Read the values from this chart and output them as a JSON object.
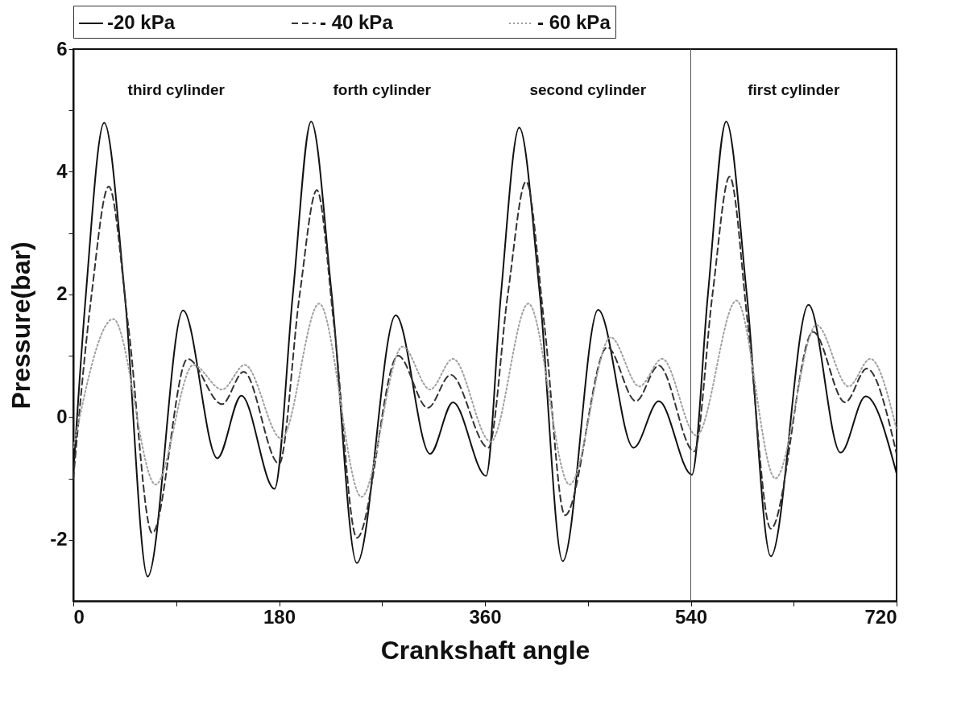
{
  "chart_data": {
    "type": "line",
    "xlabel": "Crankshaft angle",
    "ylabel": "Pressure(bar)",
    "xlim": [
      0,
      720
    ],
    "xticks": [
      0,
      {
        "value": 90,
        "label": null
      },
      180,
      {
        "value": 270,
        "label": null
      },
      360,
      {
        "value": 450,
        "label": null
      },
      540,
      {
        "value": 630,
        "label": null
      },
      720
    ],
    "ylim": [
      -3,
      6
    ],
    "yticks": [
      {
        "value": -1,
        "label": null
      },
      -2,
      0,
      {
        "value": 1,
        "label": null
      },
      2,
      {
        "value": 3,
        "label": null
      },
      4,
      {
        "value": 5,
        "label": null
      },
      6
    ],
    "grid": false,
    "legend": "top",
    "marker": "none",
    "annotations": [
      "third cylinder",
      "forth cylinder",
      "second cylinder",
      "first cylinder"
    ],
    "ref_lines": [
      {
        "axis": "x",
        "value": 540,
        "color": "#555555",
        "line_style": "solid"
      }
    ],
    "series": [
      {
        "name": "-20 kPa",
        "color": "#111111",
        "line_style": "solid",
        "x": [
          0,
          11,
          27,
          45,
          65,
          96,
          126,
          147,
          176,
          192,
          208,
          226,
          248,
          282,
          312,
          332,
          361,
          374,
          390,
          408,
          428,
          459,
          490,
          512,
          541,
          555,
          571,
          589,
          610,
          643,
          671,
          693,
          720
        ],
        "values": [
          -0.92,
          2,
          4.8,
          2,
          -2.6,
          1.74,
          -0.67,
          0.35,
          -1.17,
          2,
          4.82,
          2,
          -2.38,
          1.66,
          -0.6,
          0.24,
          -0.96,
          2,
          4.72,
          2,
          -2.35,
          1.75,
          -0.5,
          0.26,
          -0.94,
          2,
          4.82,
          2,
          -2.27,
          1.83,
          -0.58,
          0.34,
          -0.92
        ]
      },
      {
        "name": "- 40 kPa",
        "color": "#333333",
        "line_style": "dashed",
        "x": [
          0,
          16,
          31,
          48,
          69,
          100,
          130,
          149,
          180,
          198,
          213,
          228,
          248,
          284,
          310,
          330,
          363,
          380,
          396,
          412,
          430,
          467,
          492,
          512,
          543,
          559,
          574,
          590,
          610,
          647,
          675,
          694,
          720
        ],
        "values": [
          -1.0,
          2,
          3.76,
          1.5,
          -1.89,
          0.95,
          0.21,
          0.74,
          -0.76,
          2,
          3.7,
          1.5,
          -1.97,
          1.0,
          0.15,
          0.69,
          -0.5,
          2,
          3.84,
          1.5,
          -1.6,
          1.14,
          0.26,
          0.84,
          -0.56,
          2,
          3.92,
          1.5,
          -1.82,
          1.39,
          0.24,
          0.79,
          -0.6
        ]
      },
      {
        "name": "- 60 kPa",
        "color": "#a0a0a0",
        "line_style": "dotted",
        "x": [
          0,
          35,
          72,
          105,
          130,
          150,
          182,
          215,
          252,
          288,
          312,
          332,
          365,
          398,
          434,
          470,
          495,
          515,
          545,
          580,
          614,
          650,
          678,
          697,
          720
        ],
        "values": [
          -0.5,
          1.6,
          -1.1,
          0.85,
          0.45,
          0.85,
          -0.35,
          1.85,
          -1.3,
          1.15,
          0.45,
          0.95,
          -0.4,
          1.85,
          -1.1,
          1.3,
          0.5,
          0.95,
          -0.3,
          1.9,
          -1.0,
          1.5,
          0.5,
          0.95,
          -0.2
        ]
      }
    ]
  }
}
